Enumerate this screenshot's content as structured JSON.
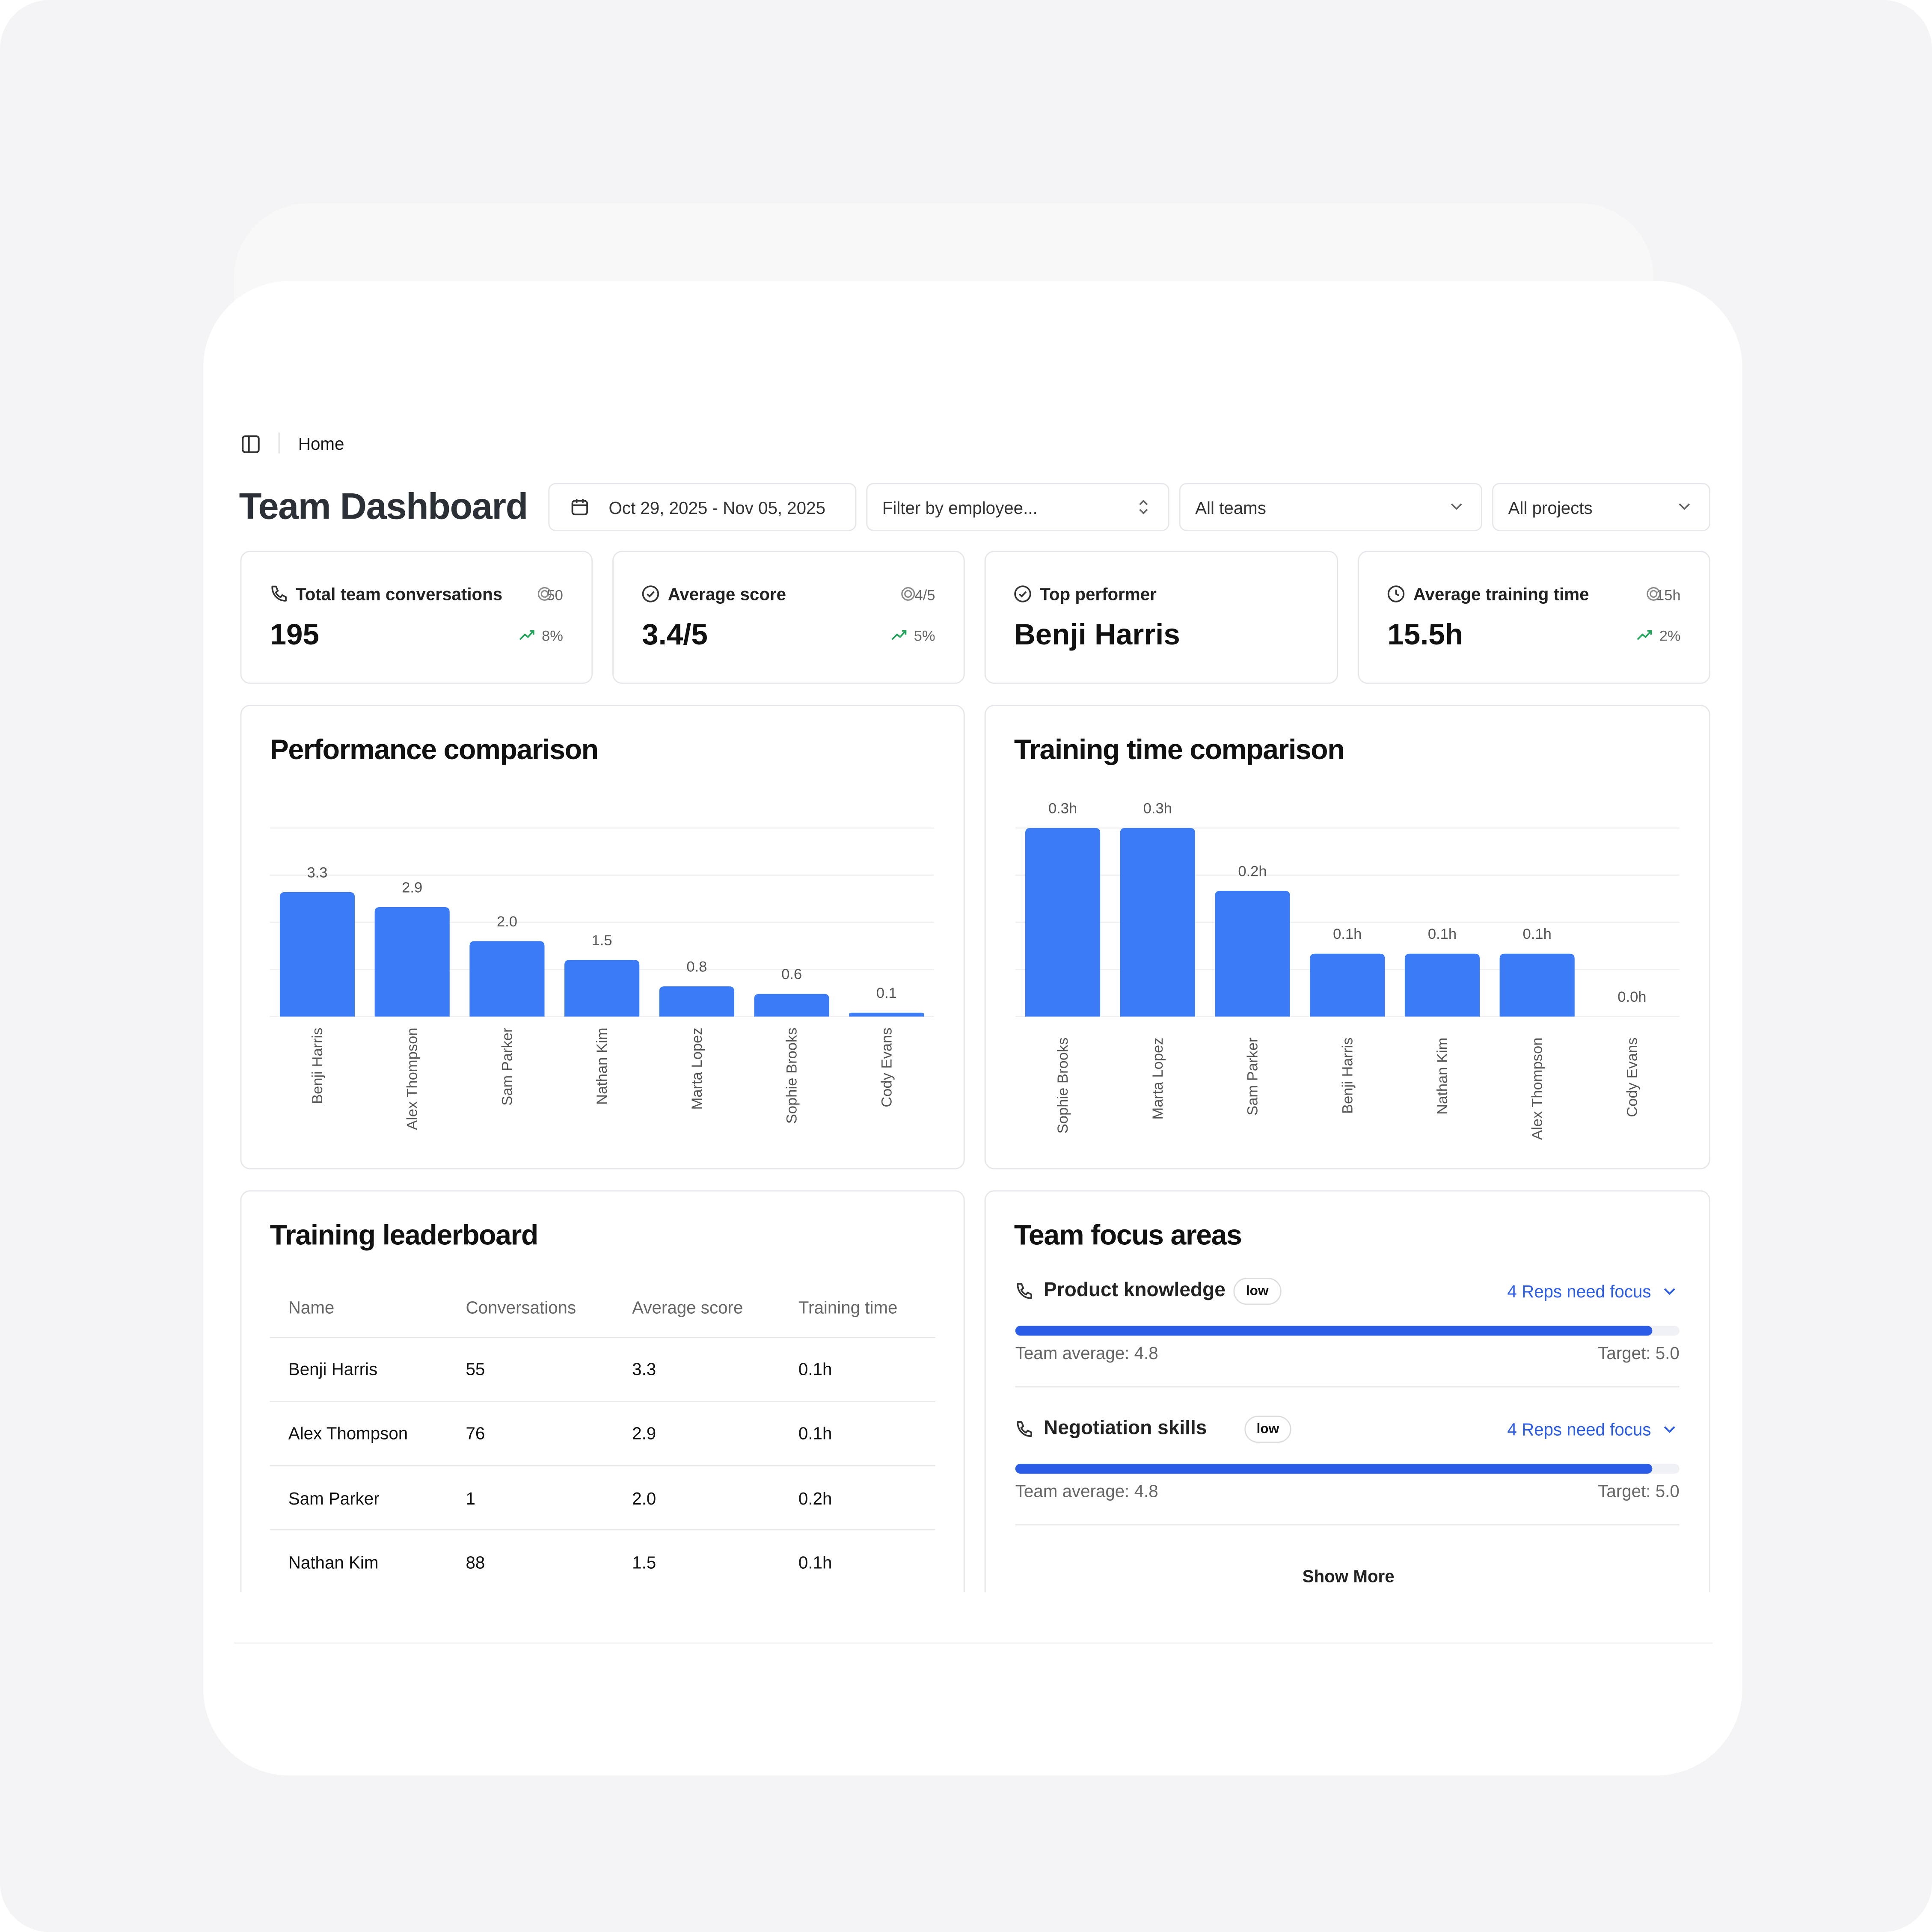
{
  "breadcrumb": "Home",
  "header": {
    "title": "Team Dashboard",
    "date_range": "Oct 29, 2025 - Nov 05, 2025",
    "employee_filter": "Filter by employee...",
    "team_filter": "All teams",
    "project_filter": "All projects"
  },
  "kpis": [
    {
      "label": "Total team conversations",
      "value": "195",
      "target": "50",
      "change": "8%"
    },
    {
      "label": "Average score",
      "value": "3.4/5",
      "target": "4/5",
      "change": "5%"
    },
    {
      "label": "Top performer",
      "value": "Benji Harris"
    },
    {
      "label": "Average training time",
      "value": "15.5h",
      "target": "15h",
      "change": "2%"
    }
  ],
  "chart_data": [
    {
      "type": "bar",
      "title": "Performance comparison",
      "categories": [
        "Benji Harris",
        "Alex Thompson",
        "Sam Parker",
        "Nathan Kim",
        "Marta Lopez",
        "Sophie Brooks",
        "Cody Evans"
      ],
      "values": [
        3.3,
        2.9,
        2.0,
        1.5,
        0.8,
        0.6,
        0.1
      ],
      "value_labels": [
        "3.3",
        "2.9",
        "2.0",
        "1.5",
        "0.8",
        "0.6",
        "0.1"
      ],
      "color": "#3b7cf6",
      "ylim": [
        0,
        5
      ],
      "yticks": [
        0,
        1.25,
        2.5,
        3.75,
        5
      ],
      "grid": true
    },
    {
      "type": "bar",
      "title": "Training time comparison",
      "categories": [
        "Sophie Brooks",
        "Marta Lopez",
        "Sam Parker",
        "Benji Harris",
        "Nathan Kim",
        "Alex Thompson",
        "Cody Evans"
      ],
      "values": [
        0.3,
        0.3,
        0.2,
        0.1,
        0.1,
        0.1,
        0.0
      ],
      "value_labels": [
        "0.3h",
        "0.3h",
        "0.2h",
        "0.1h",
        "0.1h",
        "0.1h",
        "0.0h"
      ],
      "color": "#3b7cf6",
      "ylim": [
        0,
        0.3
      ],
      "yticks": [
        0,
        0.075,
        0.15,
        0.225,
        0.3
      ],
      "grid": true
    }
  ],
  "leaderboard": {
    "title": "Training leaderboard",
    "columns": [
      "Name",
      "Conversations",
      "Average score",
      "Training time"
    ],
    "rows": [
      [
        "Benji Harris",
        "55",
        "3.3",
        "0.1h"
      ],
      [
        "Alex Thompson",
        "76",
        "2.9",
        "0.1h"
      ],
      [
        "Sam Parker",
        "1",
        "2.0",
        "0.2h"
      ],
      [
        "Nathan Kim",
        "88",
        "1.5",
        "0.1h"
      ]
    ]
  },
  "focus": {
    "title": "Team focus areas",
    "show_more": "Show More",
    "items": [
      {
        "name": "Product knowledge",
        "badge": "low",
        "link": "4 Reps need focus",
        "average": 4.8,
        "target": 5.0,
        "average_label": "Team average: 4.8",
        "target_label": "Target: 5.0"
      },
      {
        "name": "Negotiation skills",
        "badge": "low",
        "link": "4 Reps need focus",
        "average": 4.8,
        "target": 5.0,
        "average_label": "Team average: 4.8",
        "target_label": "Target: 5.0"
      }
    ]
  }
}
